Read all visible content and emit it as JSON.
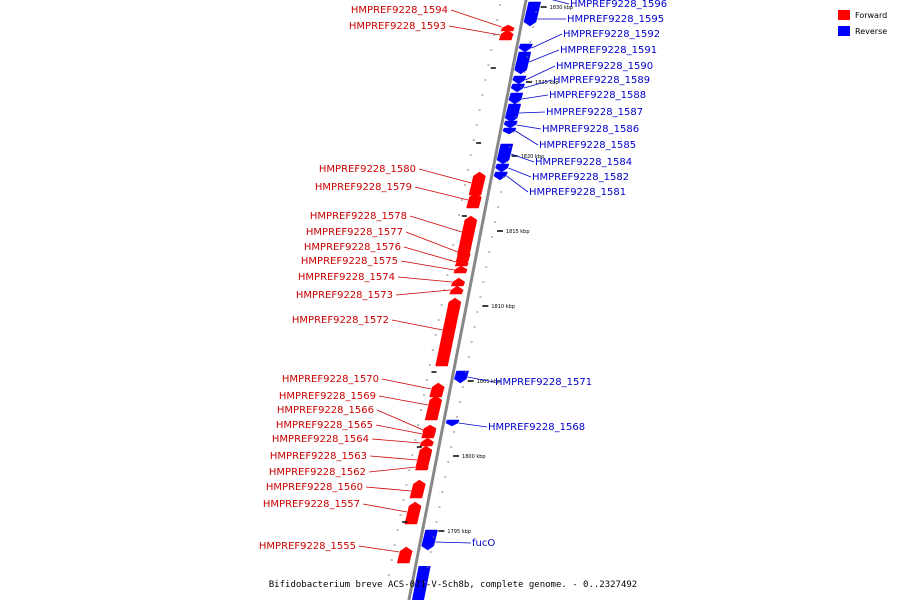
{
  "caption": "Bifidobacterium breve ACS-071-V-Sch8b, complete genome. - 0..2327492",
  "colors": {
    "forward": "#ff0000",
    "reverse": "#0000ff",
    "label_forward": "#cc0000",
    "label_reverse": "#0000cc",
    "backbone": "#888888"
  },
  "legend": [
    {
      "label": "Forward",
      "strand": "forward"
    },
    {
      "label": "Reverse",
      "strand": "reverse"
    }
  ],
  "ticks": [
    {
      "label": "1830 kbp"
    },
    {
      "label": "1825 kbp"
    },
    {
      "label": "1820 kbp"
    },
    {
      "label": "1815 kbp"
    },
    {
      "label": "1810 kbp"
    },
    {
      "label": "1805 kbp"
    },
    {
      "label": "1800 kbp"
    },
    {
      "label": "1795 kbp"
    }
  ],
  "genes": [
    {
      "name": "HMPREF9228_1596",
      "strand": "reverse"
    },
    {
      "name": "HMPREF9228_1595",
      "strand": "reverse"
    },
    {
      "name": "HMPREF9228_1594",
      "strand": "forward"
    },
    {
      "name": "HMPREF9228_1593",
      "strand": "forward"
    },
    {
      "name": "HMPREF9228_1592",
      "strand": "reverse"
    },
    {
      "name": "HMPREF9228_1591",
      "strand": "reverse"
    },
    {
      "name": "HMPREF9228_1590",
      "strand": "reverse"
    },
    {
      "name": "HMPREF9228_1589",
      "strand": "reverse"
    },
    {
      "name": "HMPREF9228_1588",
      "strand": "reverse"
    },
    {
      "name": "HMPREF9228_1587",
      "strand": "reverse"
    },
    {
      "name": "HMPREF9228_1586",
      "strand": "reverse"
    },
    {
      "name": "HMPREF9228_1585",
      "strand": "reverse"
    },
    {
      "name": "HMPREF9228_1584",
      "strand": "reverse"
    },
    {
      "name": "HMPREF9228_1582",
      "strand": "reverse"
    },
    {
      "name": "HMPREF9228_1581",
      "strand": "reverse"
    },
    {
      "name": "HMPREF9228_1580",
      "strand": "forward"
    },
    {
      "name": "HMPREF9228_1579",
      "strand": "forward"
    },
    {
      "name": "HMPREF9228_1578",
      "strand": "forward"
    },
    {
      "name": "HMPREF9228_1577",
      "strand": "forward"
    },
    {
      "name": "HMPREF9228_1576",
      "strand": "forward"
    },
    {
      "name": "HMPREF9228_1575",
      "strand": "forward"
    },
    {
      "name": "HMPREF9228_1574",
      "strand": "forward"
    },
    {
      "name": "HMPREF9228_1573",
      "strand": "forward"
    },
    {
      "name": "HMPREF9228_1572",
      "strand": "forward"
    },
    {
      "name": "HMPREF9228_1571",
      "strand": "reverse"
    },
    {
      "name": "HMPREF9228_1570",
      "strand": "forward"
    },
    {
      "name": "HMPREF9228_1569",
      "strand": "forward"
    },
    {
      "name": "HMPREF9228_1568",
      "strand": "reverse"
    },
    {
      "name": "HMPREF9228_1566",
      "strand": "forward"
    },
    {
      "name": "HMPREF9228_1565",
      "strand": "forward"
    },
    {
      "name": "HMPREF9228_1564",
      "strand": "forward"
    },
    {
      "name": "HMPREF9228_1563",
      "strand": "forward"
    },
    {
      "name": "HMPREF9228_1562",
      "strand": "forward"
    },
    {
      "name": "HMPREF9228_1560",
      "strand": "forward"
    },
    {
      "name": "HMPREF9228_1557",
      "strand": "forward"
    },
    {
      "name": "fucO",
      "strand": "reverse"
    },
    {
      "name": "HMPREF9228_1555",
      "strand": "forward"
    }
  ]
}
